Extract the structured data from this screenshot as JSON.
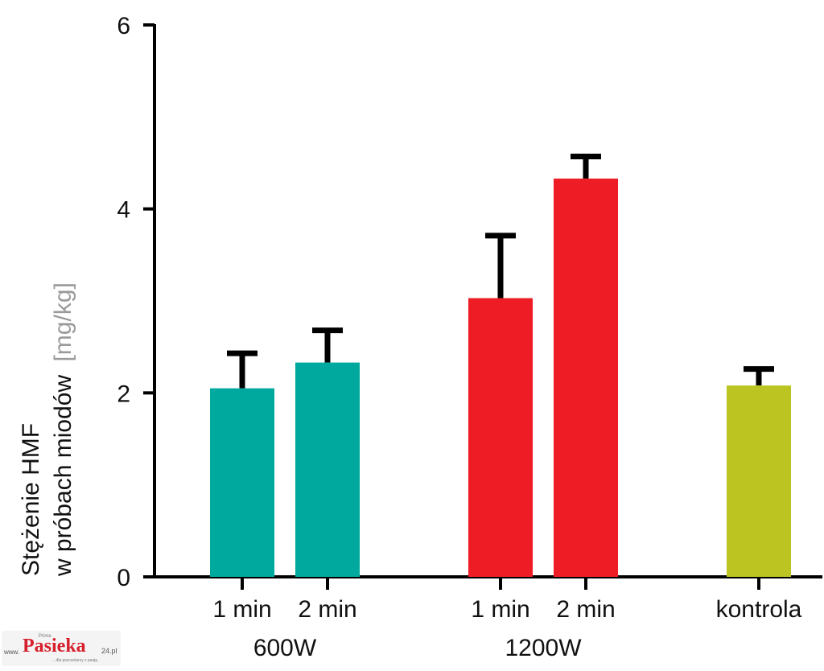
{
  "chart_data": {
    "type": "bar",
    "ylabel_line1": "Stężenie HMF",
    "ylabel_line2": "w próbach miodów",
    "ylabel_unit": "[mg/kg]",
    "ylim": [
      0,
      6
    ],
    "yticks": [
      "0",
      "2",
      "4",
      "6"
    ],
    "grid": false,
    "bars": [
      {
        "label": "1 min",
        "value": 2.05,
        "error": 0.38,
        "color": "#00a99d"
      },
      {
        "label": "2 min",
        "value": 2.33,
        "error": 0.35,
        "color": "#00a99d"
      },
      {
        "label": "1 min",
        "value": 3.03,
        "error": 0.68,
        "color": "#ee1d25"
      },
      {
        "label": "2 min",
        "value": 4.33,
        "error": 0.24,
        "color": "#ee1d25"
      },
      {
        "label": "kontrola",
        "value": 2.08,
        "error": 0.18,
        "color": "#bcc421"
      }
    ],
    "groups": [
      {
        "label": "600W"
      },
      {
        "label": "1200W"
      }
    ]
  },
  "watermark": {
    "www": "www.",
    "prime": "Prime",
    "brand": "Pasieka",
    "suffix": "24.pl",
    "tagline": "... dla pszczelarzy z pasją"
  }
}
